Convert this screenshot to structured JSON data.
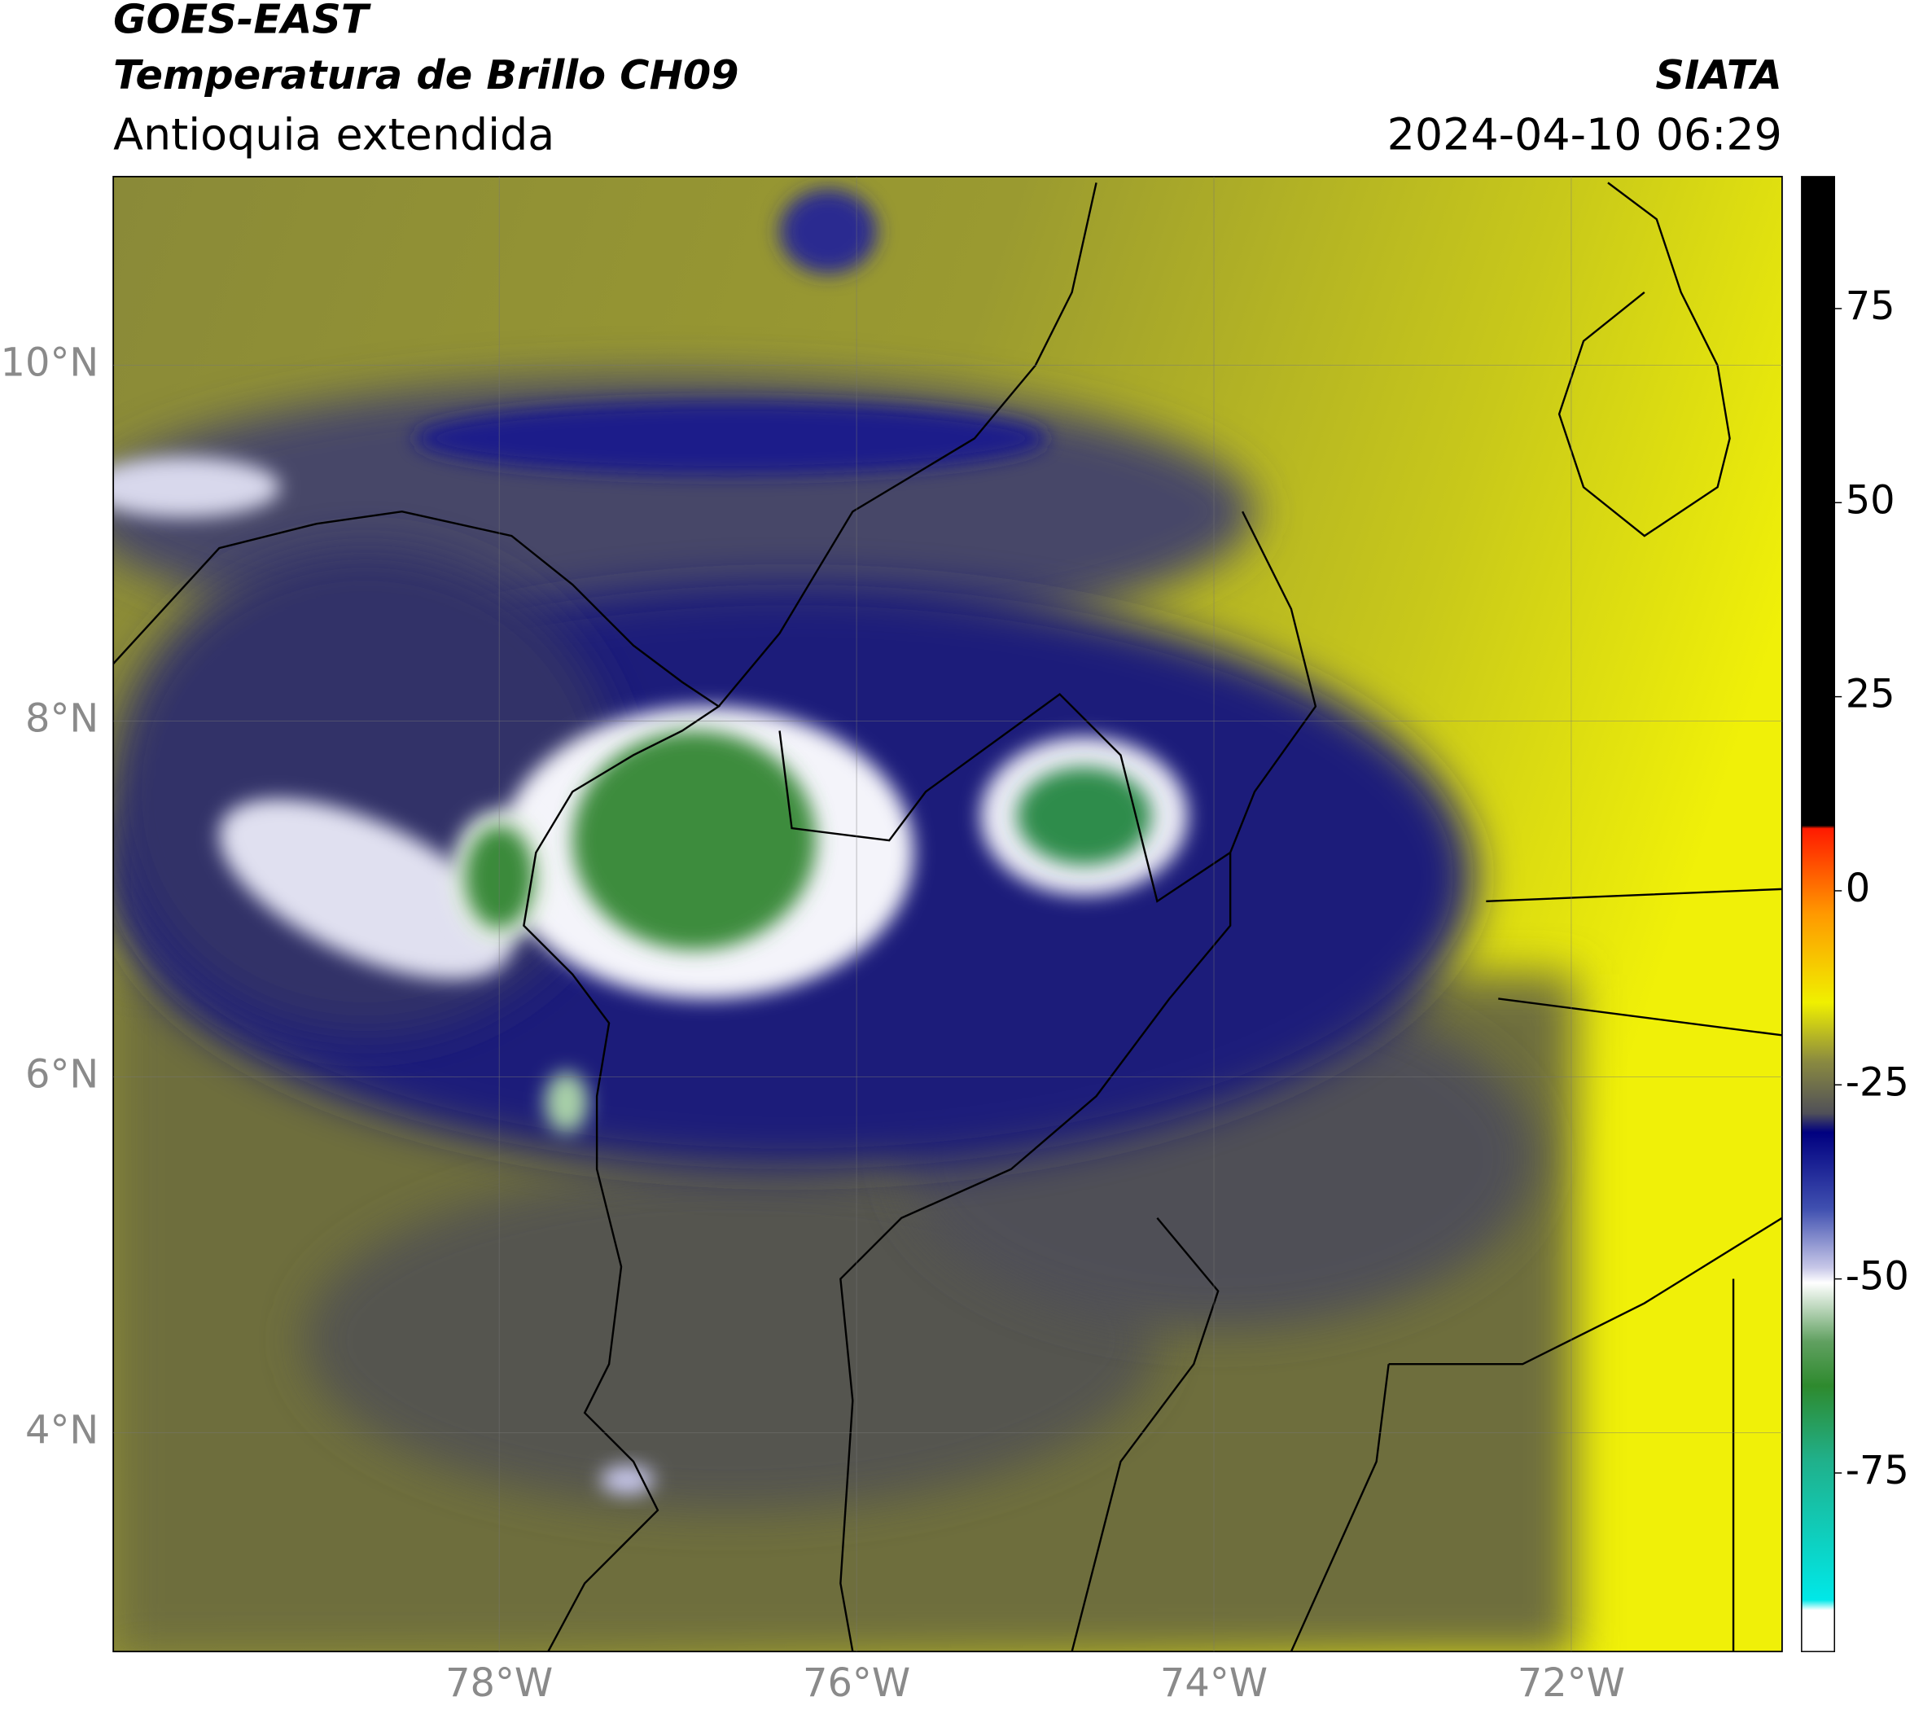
{
  "header": {
    "title": "GOES-EAST",
    "subtitle": "Temperatura de Brillo CH09",
    "region": "Antioquia extendida",
    "source": "SIATA",
    "datetime": "2024-04-10 06:29"
  },
  "map": {
    "xlim": [
      -80.16,
      -70.82
    ],
    "ylim": [
      2.77,
      11.06
    ],
    "lon_ticks": [
      {
        "value": -78,
        "label": "78°W"
      },
      {
        "value": -76,
        "label": "76°W"
      },
      {
        "value": -74,
        "label": "74°W"
      },
      {
        "value": -72,
        "label": "72°W"
      }
    ],
    "lat_ticks": [
      {
        "value": 10,
        "label": "10°N"
      },
      {
        "value": 8,
        "label": "8°N"
      },
      {
        "value": 6,
        "label": "6°N"
      },
      {
        "value": 4,
        "label": "4°N"
      }
    ]
  },
  "colorbar": {
    "lim": [
      -98,
      92
    ],
    "ticks": [
      75,
      50,
      25,
      0,
      -25,
      -50,
      -75
    ]
  }
}
